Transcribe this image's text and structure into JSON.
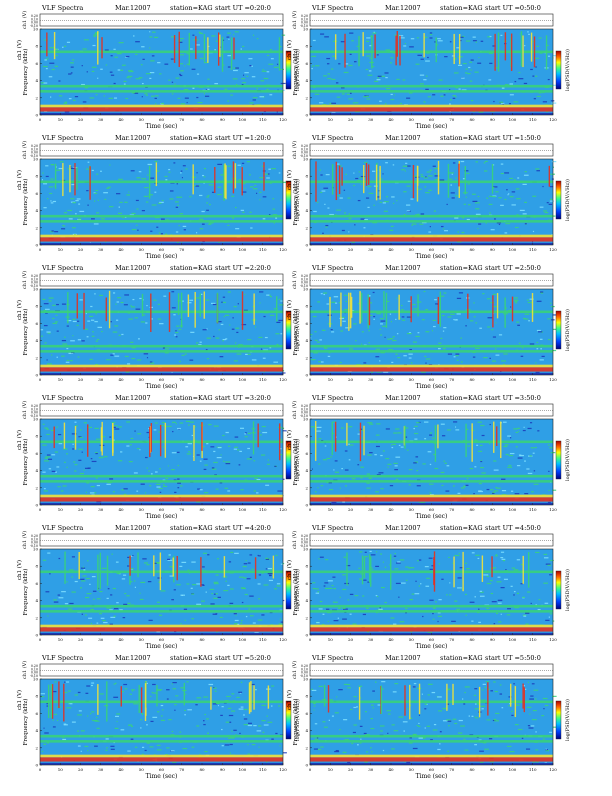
{
  "title_prefix": "VLF Spectra",
  "date": "Mar.12007",
  "station": "station=KAG",
  "ch_label": "ch1 (V)",
  "y_label": "Frequency (kHz)",
  "x_label": "Time (sec)",
  "colorbar_label": "log(PSD(V/√Hz))",
  "x_ticks": [
    "0",
    "10",
    "20",
    "30",
    "40",
    "50",
    "60",
    "70",
    "80",
    "90",
    "100",
    "110",
    "120"
  ],
  "y_ticks": [
    "0",
    "2",
    "4",
    "6",
    "8",
    "10"
  ],
  "ch_ticks": [
    "0.20",
    "0.10",
    "0.00",
    "-0.10"
  ],
  "colors": {
    "background": "#2f9fe6",
    "strong": "#e43020",
    "medium": "#f2e23a",
    "weak": "#39d27a",
    "low": "#1a3ab8"
  },
  "chart_data": [
    {
      "type": "heatmap",
      "start_label": "start UT =0:20:0",
      "xlim": [
        0,
        120
      ],
      "ylim": [
        0,
        10
      ],
      "xlabel": "Time (sec)",
      "ylabel": "Frequency (kHz)"
    },
    {
      "type": "heatmap",
      "start_label": "start UT =0:50:0",
      "xlim": [
        0,
        120
      ],
      "ylim": [
        0,
        10
      ],
      "xlabel": "Time (sec)",
      "ylabel": "Frequency (kHz)"
    },
    {
      "type": "heatmap",
      "start_label": "start UT =1:20:0",
      "xlim": [
        0,
        120
      ],
      "ylim": [
        0,
        10
      ],
      "xlabel": "Time (sec)",
      "ylabel": "Frequency (kHz)"
    },
    {
      "type": "heatmap",
      "start_label": "start UT =1:50:0",
      "xlim": [
        0,
        120
      ],
      "ylim": [
        0,
        10
      ],
      "xlabel": "Time (sec)",
      "ylabel": "Frequency (kHz)"
    },
    {
      "type": "heatmap",
      "start_label": "start UT =2:20:0",
      "xlim": [
        0,
        120
      ],
      "ylim": [
        0,
        10
      ],
      "xlabel": "Time (sec)",
      "ylabel": "Frequency (kHz)"
    },
    {
      "type": "heatmap",
      "start_label": "start UT =2:50:0",
      "xlim": [
        0,
        120
      ],
      "ylim": [
        0,
        10
      ],
      "xlabel": "Time (sec)",
      "ylabel": "Frequency (kHz)"
    },
    {
      "type": "heatmap",
      "start_label": "start UT =3:20:0",
      "xlim": [
        0,
        120
      ],
      "ylim": [
        0,
        10
      ],
      "xlabel": "Time (sec)",
      "ylabel": "Frequency (kHz)"
    },
    {
      "type": "heatmap",
      "start_label": "start UT =3:50:0",
      "xlim": [
        0,
        120
      ],
      "ylim": [
        0,
        10
      ],
      "xlabel": "Time (sec)",
      "ylabel": "Frequency (kHz)"
    },
    {
      "type": "heatmap",
      "start_label": "start UT =4:20:0",
      "xlim": [
        0,
        120
      ],
      "ylim": [
        0,
        10
      ],
      "xlabel": "Time (sec)",
      "ylabel": "Frequency (kHz)"
    },
    {
      "type": "heatmap",
      "start_label": "start UT =4:50:0",
      "xlim": [
        0,
        120
      ],
      "ylim": [
        0,
        10
      ],
      "xlabel": "Time (sec)",
      "ylabel": "Frequency (kHz)"
    },
    {
      "type": "heatmap",
      "start_label": "start UT =5:20:0",
      "xlim": [
        0,
        120
      ],
      "ylim": [
        0,
        10
      ],
      "xlabel": "Time (sec)",
      "ylabel": "Frequency (kHz)"
    },
    {
      "type": "heatmap",
      "start_label": "start UT =5:50:0",
      "xlim": [
        0,
        120
      ],
      "ylim": [
        0,
        10
      ],
      "xlabel": "Time (sec)",
      "ylabel": "Frequency (kHz)"
    }
  ]
}
